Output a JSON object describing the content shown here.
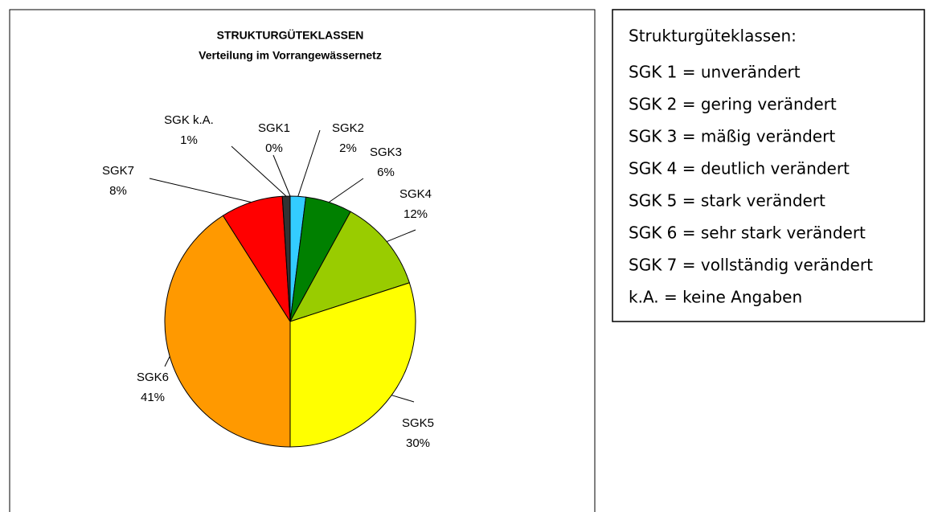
{
  "chart_data": {
    "type": "pie",
    "title": "STRUKTURGÜTEKLASSEN",
    "subtitle": "Verteilung im Vorrangewässernetz",
    "categories": [
      "SGK1",
      "SGK2",
      "SGK3",
      "SGK4",
      "SGK5",
      "SGK6",
      "SGK7",
      "SGK k.A."
    ],
    "values": [
      0,
      2,
      6,
      12,
      30,
      41,
      8,
      1
    ],
    "value_labels": [
      "0%",
      "2%",
      "6%",
      "12%",
      "30%",
      "41%",
      "8%",
      "1%"
    ],
    "colors": [
      "#3366ff",
      "#33ccff",
      "#008000",
      "#99cc00",
      "#ffff00",
      "#ff9900",
      "#ff0000",
      "#333333"
    ],
    "legend_title": "Strukturgüteklassen:",
    "legend_lines": [
      "SGK 1 = unverändert",
      "SGK 2 = gering verändert",
      "SGK 3 = mäßig verändert",
      "SGK 4 = deutlich verändert",
      "SGK 5 = stark verändert",
      "SGK 6 = sehr stark verändert",
      "SGK 7 = vollständig verändert",
      "k.A. = keine Angaben"
    ]
  }
}
